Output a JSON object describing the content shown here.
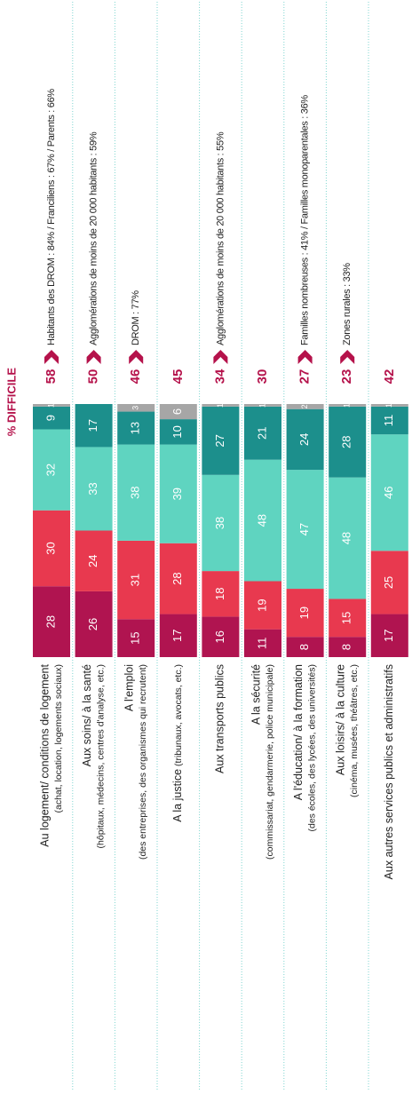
{
  "chart_data": {
    "type": "stacked-bar",
    "title": "% DIFFICILE",
    "categories": [
      "Au logement/ conditions de logement",
      "Aux soins/ à la santé",
      "A l'emploi",
      "A la justice",
      "Aux transports publics",
      "A la sécurité",
      "A l'éducation/ à la formation",
      "Aux loisirs/ à la culture",
      "Aux autres services publics et administratifs"
    ],
    "category_details": [
      "(achat, location, logements sociaux)",
      "(hôpitaux, médecins, centres d'analyse, etc.)",
      "(des entreprises, des organismes qui recrutent)",
      "(tribunaux, avocats, etc.)",
      null,
      "(commissariat, gendarmerie, police municipale)",
      "(des écoles, des lycées, des universités)",
      "(cinéma, musées, théâtres, etc.)",
      null
    ],
    "series": [
      {
        "color": "#b01450",
        "values": [
          28,
          26,
          15,
          17,
          16,
          11,
          8,
          8,
          17
        ]
      },
      {
        "color": "#e8394f",
        "values": [
          30,
          24,
          31,
          28,
          18,
          19,
          19,
          15,
          25
        ]
      },
      {
        "color": "#5fd4c0",
        "values": [
          32,
          33,
          38,
          39,
          38,
          48,
          47,
          48,
          46
        ]
      },
      {
        "color": "#1c8f8c",
        "values": [
          9,
          17,
          13,
          10,
          27,
          21,
          24,
          28,
          11
        ]
      },
      {
        "color": "#a6a6a6",
        "values": [
          1,
          0,
          3,
          6,
          1,
          1,
          2,
          1,
          1
        ]
      }
    ],
    "difficile": [
      58,
      50,
      46,
      45,
      34,
      30,
      27,
      23,
      42
    ],
    "notes": [
      "Habitants des DROM : 84% / Franciliens : 67% / Parents : 66%",
      "Agglomérations de moins de 20 000 habitants : 59%",
      "DROM : 77%",
      null,
      "Agglomérations de moins de 20 000 habitants : 55%",
      null,
      "Familles nombreuses : 41% / Familles monoparentales : 36%",
      "Zones rurales : 33%",
      null
    ],
    "xlim": [
      0,
      100
    ],
    "accent_color": "#b5124b"
  }
}
